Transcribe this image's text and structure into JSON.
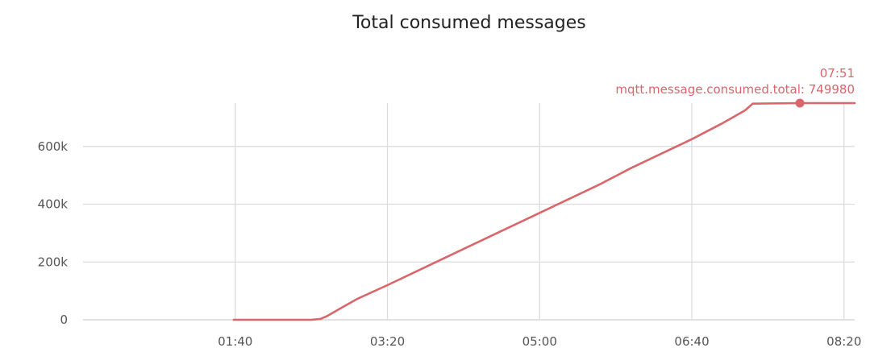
{
  "chart_data": {
    "type": "line",
    "title": "Total consumed messages",
    "xlabel": "",
    "ylabel": "",
    "x_unit": "mm:ss",
    "xlim": [
      "00:00",
      "08:27"
    ],
    "ylim": [
      0,
      750000
    ],
    "x_ticks": [
      "01:40",
      "03:20",
      "05:00",
      "06:40",
      "08:20"
    ],
    "y_ticks": [
      "0",
      "200k",
      "400k",
      "600k"
    ],
    "grid": true,
    "legend": "none",
    "series": [
      {
        "color": "#d9666b",
        "x": [
          "01:39",
          "02:00",
          "02:30",
          "02:36",
          "02:40",
          "02:50",
          "03:00",
          "03:20",
          "04:00",
          "04:30",
          "05:00",
          "05:40",
          "06:00",
          "06:40",
          "07:00",
          "07:15",
          "07:20",
          "07:51",
          "08:27"
        ],
        "y": [
          0,
          0,
          0,
          3000,
          12000,
          42000,
          72000,
          120000,
          220000,
          295000,
          370000,
          470000,
          525000,
          625000,
          680000,
          725000,
          748000,
          749980,
          749980
        ]
      }
    ],
    "highlight": {
      "time": "07:51",
      "label": "mqtt.message.consumed.total: 749980",
      "x": "07:51",
      "y": 749980
    }
  }
}
